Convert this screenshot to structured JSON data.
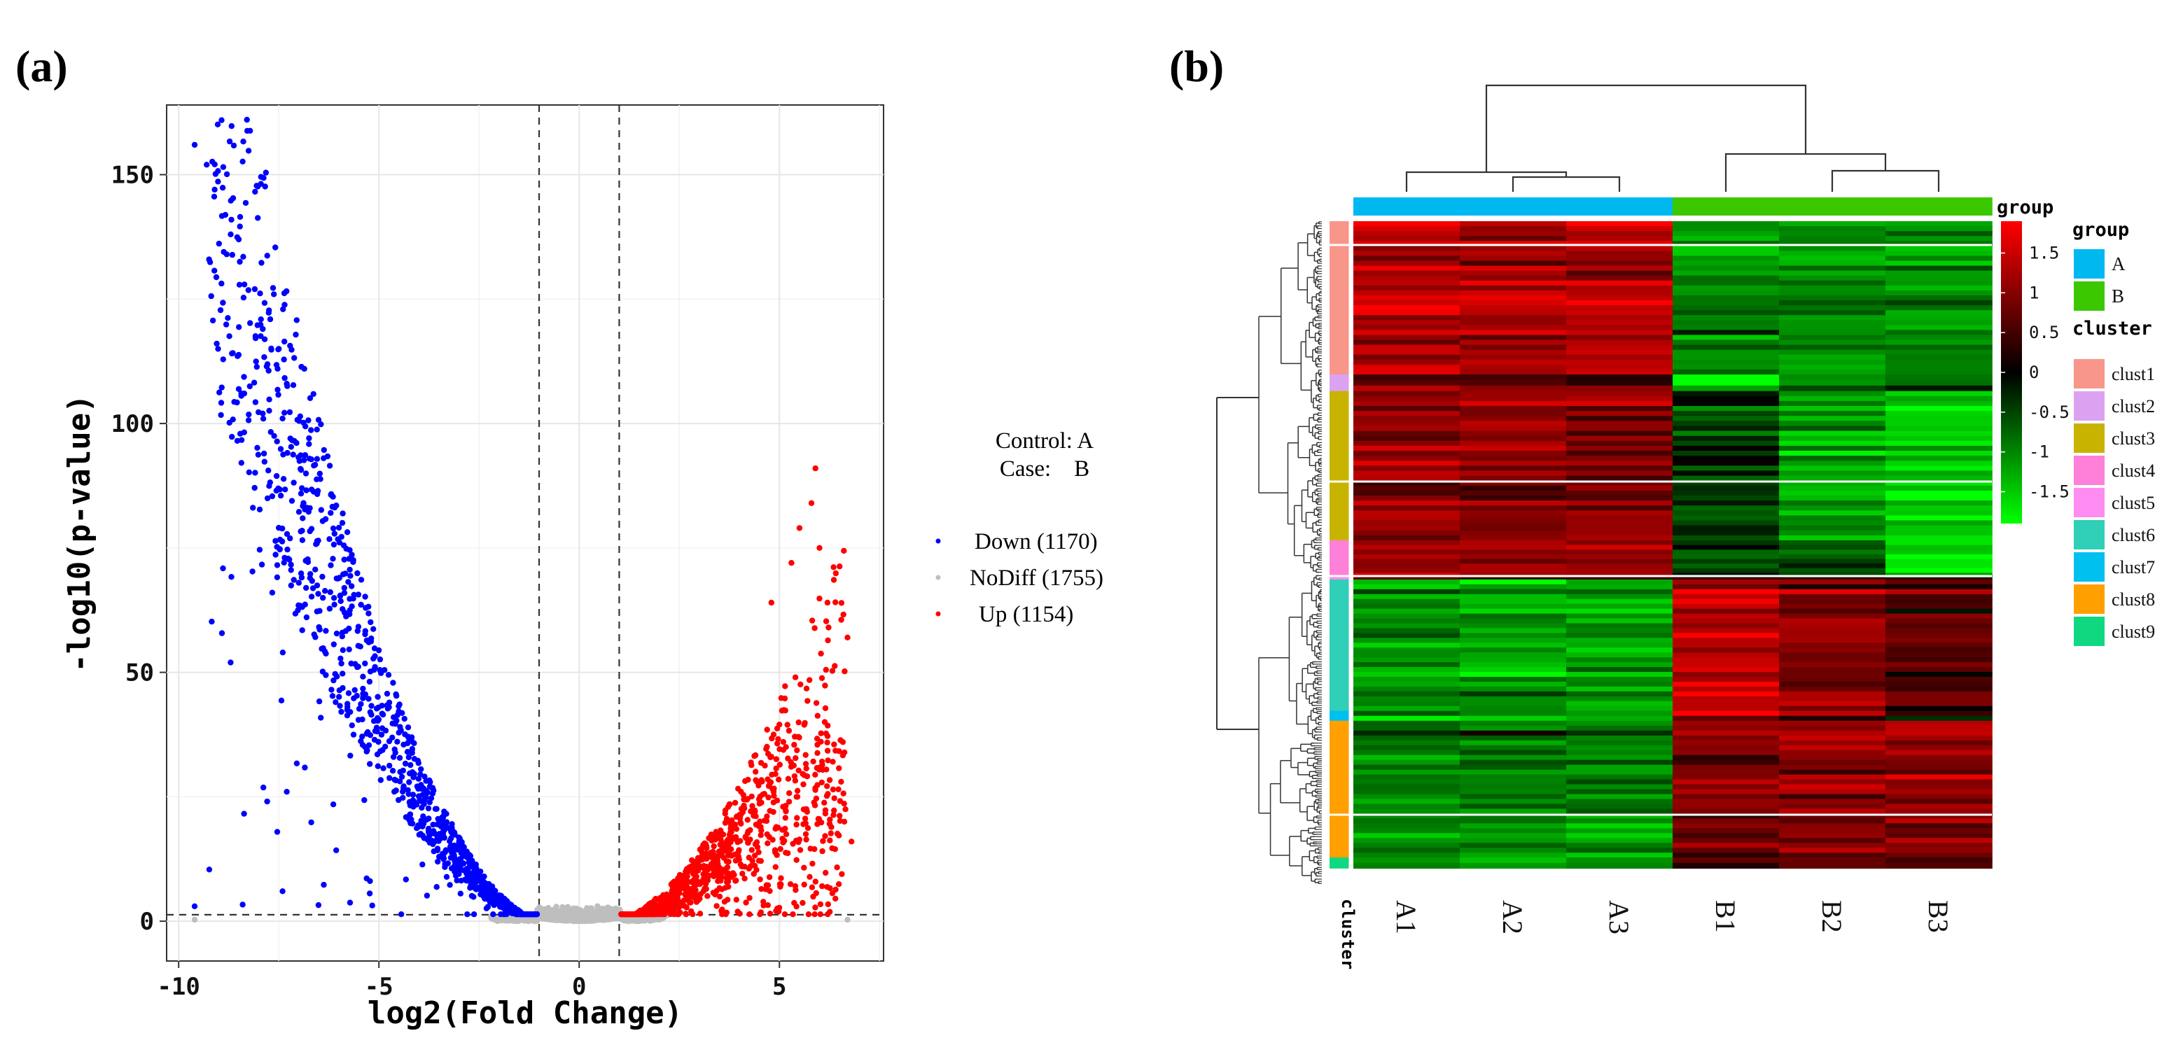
{
  "panels": {
    "a_label": "(a)",
    "b_label": "(b)"
  },
  "chart_data": [
    {
      "type": "scatter",
      "title": "",
      "xlabel": "log2(Fold Change)",
      "ylabel": "-log10(p-value)",
      "xlim": [
        -10.3,
        7.6
      ],
      "ylim": [
        -8,
        164
      ],
      "xticks": [
        -10,
        -5,
        0,
        5
      ],
      "yticks": [
        0,
        50,
        100,
        150
      ],
      "grid": true,
      "thresholds": {
        "log2fc": [
          -1,
          1
        ],
        "neglog10p": 1.3
      },
      "annotation": {
        "line1": "Control: A",
        "line2": "Case:    B"
      },
      "series": [
        {
          "name": "Down (1170)",
          "color": "#0000ff",
          "count": 1170
        },
        {
          "name": "NoDiff (1755)",
          "color": "#bebebe",
          "count": 1755
        },
        {
          "name": "Up (1154)",
          "color": "#ff0000",
          "count": 1154
        }
      ],
      "sample_points": [
        {
          "series": "Down (1170)",
          "x": -9.6,
          "y": 156
        },
        {
          "series": "Down (1170)",
          "x": -9.3,
          "y": 152
        },
        {
          "series": "Down (1170)",
          "x": -9.1,
          "y": 147
        },
        {
          "series": "Down (1170)",
          "x": -8.5,
          "y": 137
        },
        {
          "series": "Down (1170)",
          "x": -8.8,
          "y": 134
        },
        {
          "series": "Down (1170)",
          "x": -8.1,
          "y": 127
        },
        {
          "series": "Down (1170)",
          "x": -7.9,
          "y": 119
        },
        {
          "series": "Down (1170)",
          "x": -7.5,
          "y": 115
        },
        {
          "series": "Down (1170)",
          "x": -7.3,
          "y": 108
        },
        {
          "series": "Down (1170)",
          "x": -7.9,
          "y": 102
        },
        {
          "series": "Down (1170)",
          "x": -7.4,
          "y": 54
        },
        {
          "series": "Down (1170)",
          "x": -7.0,
          "y": 68
        },
        {
          "series": "Down (1170)",
          "x": -7.3,
          "y": 26
        },
        {
          "series": "Down (1170)",
          "x": -9.6,
          "y": 3
        },
        {
          "series": "Up (1154)",
          "x": 5.9,
          "y": 91
        },
        {
          "series": "Up (1154)",
          "x": 5.8,
          "y": 84
        },
        {
          "series": "Up (1154)",
          "x": 5.5,
          "y": 79
        },
        {
          "series": "Up (1154)",
          "x": 6.0,
          "y": 75
        },
        {
          "series": "Up (1154)",
          "x": 5.3,
          "y": 72
        },
        {
          "series": "Up (1154)",
          "x": 6.2,
          "y": 64
        },
        {
          "series": "Up (1154)",
          "x": 4.8,
          "y": 64
        },
        {
          "series": "Up (1154)",
          "x": 6.7,
          "y": 57
        },
        {
          "series": "Up (1154)",
          "x": 5.4,
          "y": 49
        },
        {
          "series": "Up (1154)",
          "x": 6.8,
          "y": 16
        },
        {
          "series": "NoDiff (1755)",
          "x": -9.6,
          "y": 0.3
        },
        {
          "series": "NoDiff (1755)",
          "x": 6.7,
          "y": 0.3
        }
      ]
    },
    {
      "type": "heatmap",
      "title": "",
      "columns": [
        "A1",
        "A2",
        "A3",
        "B1",
        "B2",
        "B3"
      ],
      "group_assignment": [
        "A",
        "A",
        "A",
        "B",
        "B",
        "B"
      ],
      "row_annotation_label": "cluster",
      "color_scale": {
        "title": "group",
        "ticks": [
          1.5,
          1,
          0.5,
          0,
          -0.5,
          -1,
          -1.5
        ],
        "tick_labels": [
          "1.5",
          "1",
          "0.5",
          "0",
          "-0.5",
          "-1",
          "-1.5"
        ],
        "colors": [
          "#ff0000",
          "#000000",
          "#00ff00"
        ]
      },
      "clusters": [
        {
          "name": "clust1",
          "color": "#f8968a",
          "fraction": 0.231,
          "values": [
            1.3,
            1.3,
            1.3,
            -1.0,
            -1.0,
            -1.0
          ]
        },
        {
          "name": "clust2",
          "color": "#dca2f2",
          "fraction": 0.025,
          "values": [
            0.9,
            0.9,
            0.9,
            -1.7,
            -0.9,
            -0.4
          ]
        },
        {
          "name": "clust3",
          "color": "#c8b400",
          "fraction": 0.225,
          "values": [
            1.0,
            1.0,
            1.0,
            -0.3,
            -1.2,
            -1.6
          ]
        },
        {
          "name": "clust4",
          "color": "#ff80d8",
          "fraction": 0.056,
          "values": [
            1.1,
            1.1,
            1.1,
            -0.6,
            -0.6,
            -1.8
          ]
        },
        {
          "name": "clust5",
          "color": "#ff8cf0",
          "fraction": 0.003,
          "values": [
            0.2,
            0.2,
            0.2,
            0.2,
            0.2,
            0.2
          ]
        },
        {
          "name": "clust6",
          "color": "#2fcfb8",
          "fraction": 0.198,
          "values": [
            -1.1,
            -1.1,
            -1.2,
            1.4,
            1.0,
            0.6
          ]
        },
        {
          "name": "clust7",
          "color": "#00c0f0",
          "fraction": 0.015,
          "values": [
            -1.0,
            -1.0,
            -1.0,
            1.6,
            0.9,
            0.4
          ]
        },
        {
          "name": "clust8",
          "color": "#ffa000",
          "fraction": 0.206,
          "values": [
            -1.0,
            -1.0,
            -1.0,
            0.9,
            1.0,
            1.0
          ]
        },
        {
          "name": "clust9",
          "color": "#10d880",
          "fraction": 0.016,
          "values": [
            -1.0,
            -1.0,
            -1.0,
            0.7,
            0.9,
            0.9
          ]
        }
      ],
      "legend": {
        "group_title": "group",
        "groups": [
          {
            "name": "A",
            "color": "#00b8f0"
          },
          {
            "name": "B",
            "color": "#3cc800"
          }
        ],
        "cluster_title": "cluster"
      }
    }
  ]
}
